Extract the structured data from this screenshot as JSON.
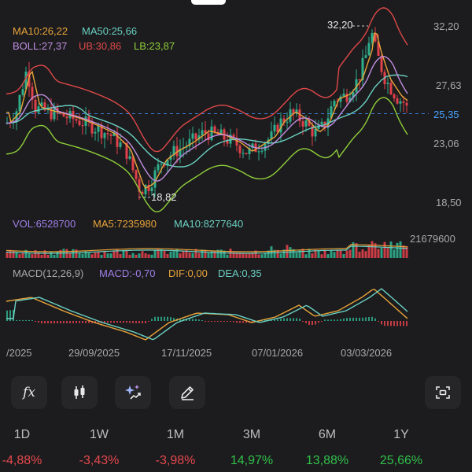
{
  "legend": {
    "ma10": "MA10:26,22",
    "ma50": "MA50:25,66",
    "boll": "BOLL:27,37",
    "ub": "UB:30,86",
    "lb": "LB:23,87",
    "vol": "VOL:6528700",
    "vol_ma5": "MA5:7235980",
    "vol_ma10": "MA10:8277640",
    "macd_title": "MACD(12,26,9)",
    "macd": "MACD:-0,70",
    "dif": "DIF:0,00",
    "dea": "DEA:0,35"
  },
  "price_axis": {
    "t1": "32,20",
    "t2": "27,63",
    "current": "25,35",
    "t3": "23,06",
    "t4": "18,50"
  },
  "annotations": {
    "high": "32,20",
    "low": "18,82"
  },
  "volume_axis": "21679600",
  "dates": [
    "/2025",
    "29/09/2025",
    "17/11/2025",
    "07/01/2026",
    "03/03/2026"
  ],
  "toolbar": {
    "items": [
      {
        "icon": "function-fx-icon",
        "glyph": "fx"
      },
      {
        "icon": "candlestick-icon"
      },
      {
        "icon": "ai-sparkle-icon"
      },
      {
        "icon": "pencil-draw-icon"
      },
      {
        "icon": "screenshot-capture-icon"
      }
    ]
  },
  "periods": [
    {
      "label": "1D",
      "change": "-4,88%",
      "dir": "neg"
    },
    {
      "label": "1W",
      "change": "-3,43%",
      "dir": "neg"
    },
    {
      "label": "1M",
      "change": "-3,98%",
      "dir": "neg"
    },
    {
      "label": "3M",
      "change": "14,97%",
      "dir": "pos"
    },
    {
      "label": "6M",
      "change": "13,88%",
      "dir": "pos"
    },
    {
      "label": "1Y",
      "change": "25,66%",
      "dir": "pos"
    }
  ],
  "colors": {
    "ma10": "#e8a33a",
    "ma50": "#6ad0c2",
    "boll": "#c08ee0",
    "ub": "#e04848",
    "lb": "#8fcf3a",
    "up": "#2fae8c",
    "down": "#e0414a",
    "vol_line": "#a07fe8",
    "dif": "#e8a33a",
    "dea": "#6ad0c2"
  }
}
